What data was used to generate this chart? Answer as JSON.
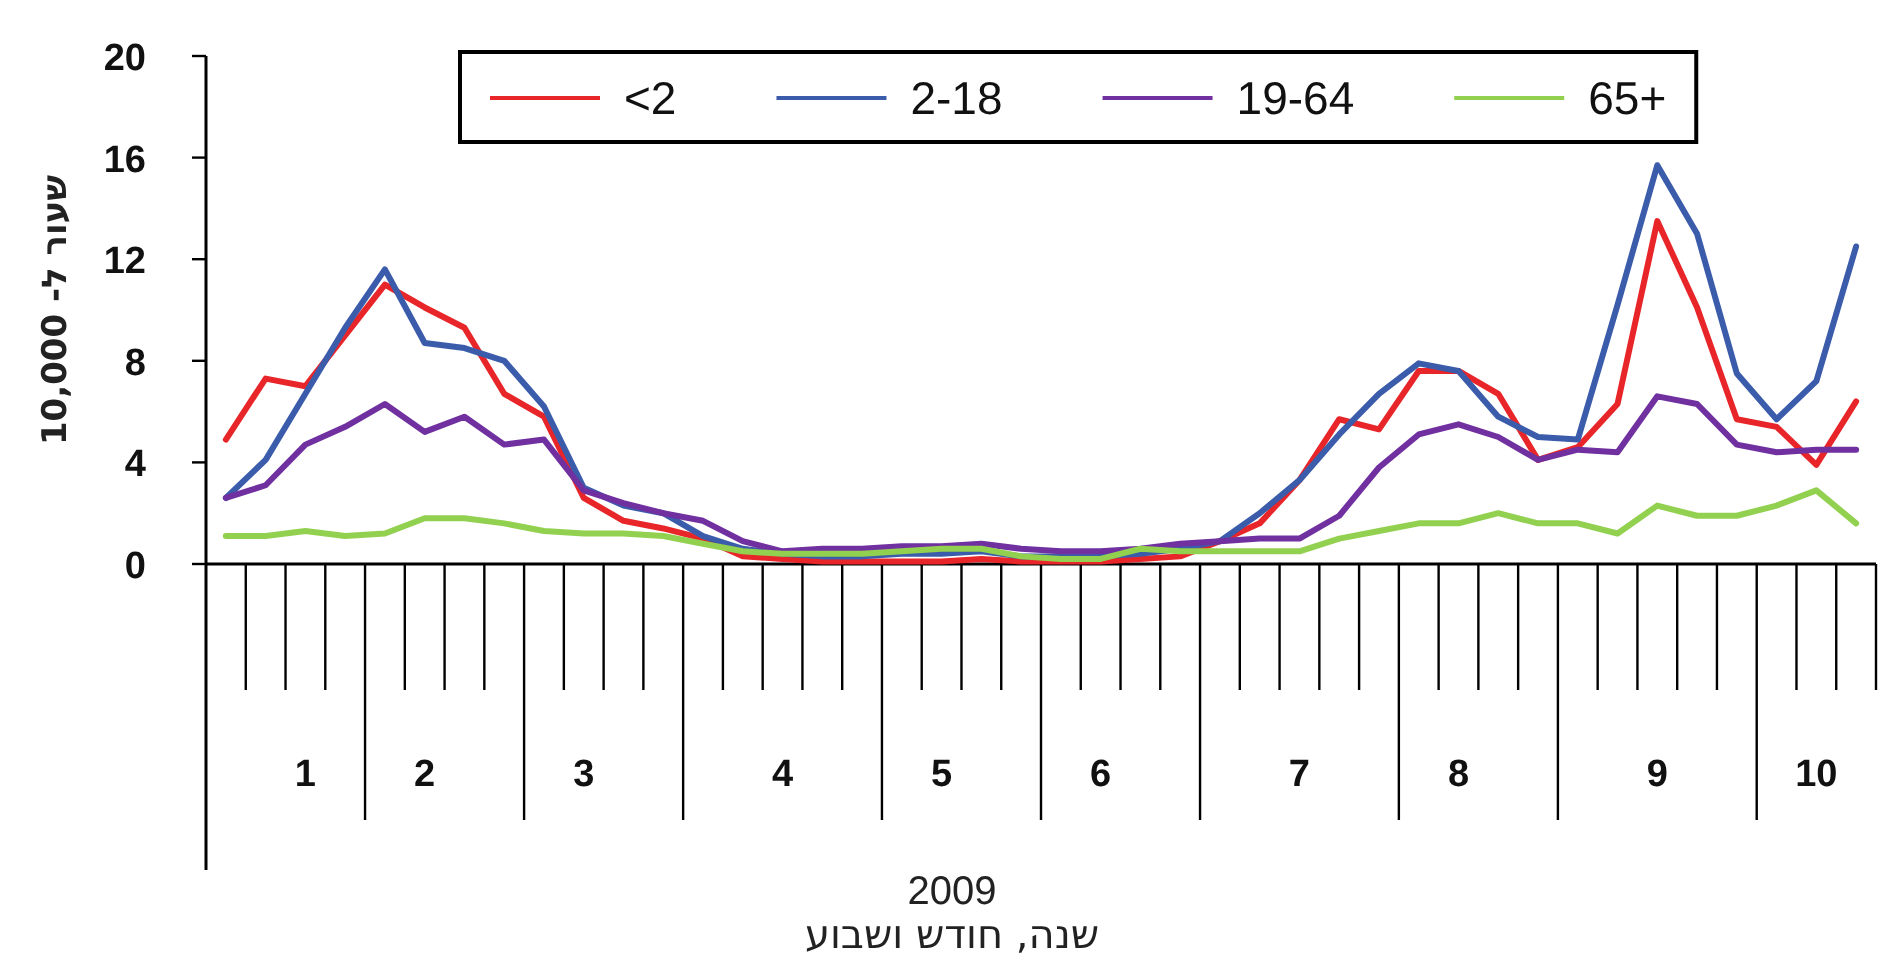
{
  "chart_data": {
    "type": "line",
    "xlabel": "2009\nשנה, חודש ושבוע",
    "ylabel": "שעור ל- 10,000",
    "categories": [
      null,
      null,
      "1",
      null,
      null,
      "2",
      null,
      null,
      null,
      "3",
      null,
      null,
      null,
      null,
      "4",
      null,
      null,
      null,
      "5",
      null,
      null,
      null,
      "6",
      null,
      null,
      null,
      null,
      "7",
      null,
      null,
      null,
      "8",
      null,
      null,
      null,
      null,
      "9",
      null,
      null,
      null,
      "10",
      null
    ],
    "ylim": [
      0,
      20
    ],
    "yticks": [
      0,
      4,
      8,
      12,
      16,
      20
    ],
    "grid": false,
    "legend": "top",
    "marker": "none",
    "line_style": "solid",
    "series": [
      {
        "name": "<2",
        "color": "#e8262a",
        "values": [
          4.9,
          7.3,
          7.0,
          9.0,
          11.0,
          10.1,
          9.3,
          6.7,
          5.8,
          2.6,
          1.7,
          1.4,
          1.0,
          0.3,
          0.2,
          0.1,
          0.1,
          0.1,
          0.1,
          0.2,
          0.1,
          0.1,
          0.1,
          0.2,
          0.3,
          0.9,
          1.6,
          3.3,
          5.7,
          5.3,
          7.6,
          7.6,
          6.7,
          4.1,
          4.6,
          6.3,
          13.5,
          10.1,
          5.7,
          5.4,
          3.9,
          6.4
        ]
      },
      {
        "name": "2-18",
        "color": "#3b5bab",
        "values": [
          2.6,
          4.1,
          6.7,
          9.3,
          11.6,
          8.7,
          8.5,
          8.0,
          6.2,
          3.0,
          2.3,
          2.0,
          1.1,
          0.6,
          0.4,
          0.3,
          0.3,
          0.4,
          0.4,
          0.5,
          0.3,
          0.3,
          0.3,
          0.4,
          0.6,
          0.9,
          2.0,
          3.3,
          5.1,
          6.7,
          7.9,
          7.6,
          5.8,
          5.0,
          4.9,
          10.2,
          15.7,
          13.0,
          7.5,
          5.7,
          7.2,
          12.5
        ]
      },
      {
        "name": "19-64",
        "color": "#7030a0",
        "values": [
          2.6,
          3.1,
          4.7,
          5.4,
          6.3,
          5.2,
          5.8,
          4.7,
          4.9,
          2.9,
          2.4,
          2.0,
          1.7,
          0.9,
          0.5,
          0.6,
          0.6,
          0.7,
          0.7,
          0.8,
          0.6,
          0.5,
          0.5,
          0.6,
          0.8,
          0.9,
          1.0,
          1.0,
          1.9,
          3.8,
          5.1,
          5.5,
          5.0,
          4.1,
          4.5,
          4.4,
          6.6,
          6.3,
          4.7,
          4.4,
          4.5,
          4.5
        ]
      },
      {
        "name": "65+",
        "color": "#92d050",
        "values": [
          1.1,
          1.1,
          1.3,
          1.1,
          1.2,
          1.8,
          1.8,
          1.6,
          1.3,
          1.2,
          1.2,
          1.1,
          0.8,
          0.5,
          0.4,
          0.4,
          0.4,
          0.5,
          0.6,
          0.6,
          0.3,
          0.2,
          0.2,
          0.6,
          0.5,
          0.5,
          0.5,
          0.5,
          1.0,
          1.3,
          1.6,
          1.6,
          2.0,
          1.6,
          1.6,
          1.2,
          2.3,
          1.9,
          1.9,
          2.3,
          2.9,
          1.6
        ]
      }
    ]
  }
}
